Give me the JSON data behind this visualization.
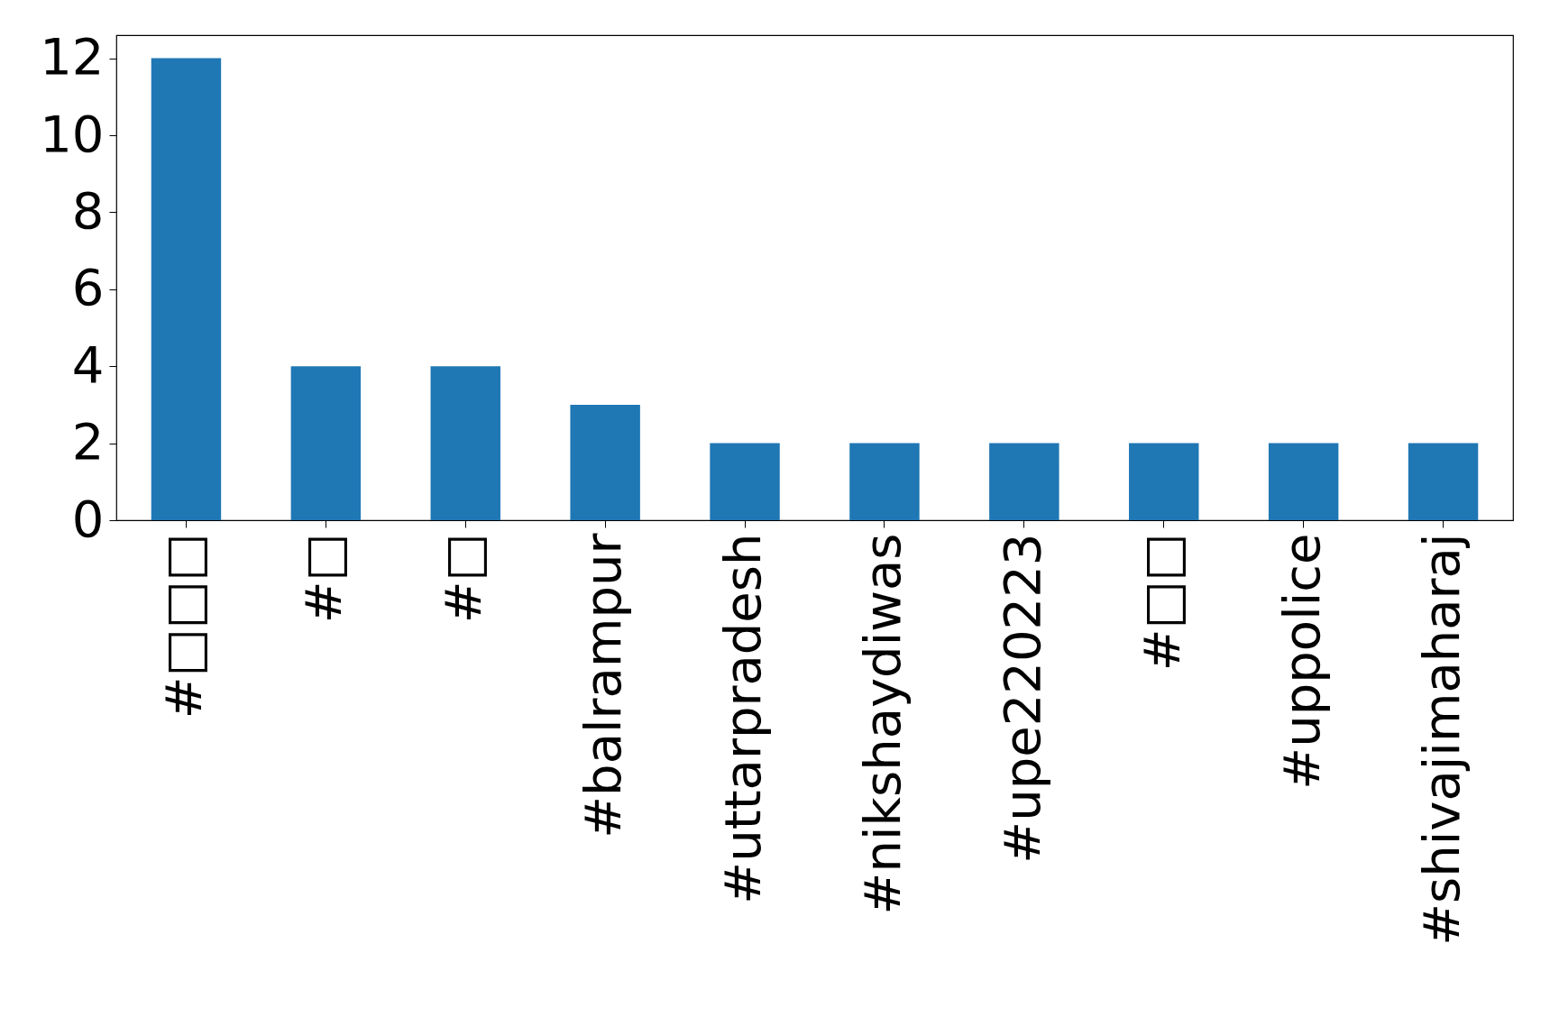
{
  "chart_data": {
    "type": "bar",
    "categories": [
      "#□□□",
      "#□",
      "#□",
      "#balrampur",
      "#uttarpradesh",
      "#nikshaydiwas",
      "#upe220223",
      "#□□",
      "#uppolice",
      "#shivajimaharaj"
    ],
    "values": [
      12,
      4,
      4,
      3,
      2,
      2,
      2,
      2,
      2,
      2
    ],
    "color": "#1f77b4",
    "ylim": [
      0,
      12.6
    ],
    "yticks": [
      0,
      2,
      4,
      6,
      8,
      10,
      12
    ]
  }
}
